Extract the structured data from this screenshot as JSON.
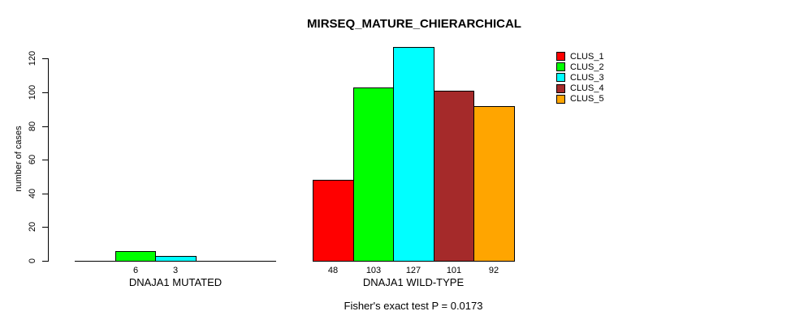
{
  "chart_data": {
    "type": "bar",
    "title": "MIRSEQ_MATURE_CHIERARCHICAL",
    "ylabel": "number of cases",
    "xlabel": "",
    "ylim": [
      0,
      130
    ],
    "y_ticks": [
      0,
      20,
      40,
      60,
      80,
      100,
      120
    ],
    "grid": false,
    "legend_position": "top-right",
    "clusters": [
      "CLUS_1",
      "CLUS_2",
      "CLUS_3",
      "CLUS_4",
      "CLUS_5"
    ],
    "colors": [
      "#FF0000",
      "#00FF00",
      "#00FFFF",
      "#A52A2A",
      "#FFA500"
    ],
    "groups": [
      {
        "label": "DNAJA1 MUTATED",
        "values": [
          0,
          6,
          3,
          0,
          0
        ],
        "bar_labels": [
          "",
          "6",
          "3",
          "",
          ""
        ]
      },
      {
        "label": "DNAJA1 WILD-TYPE",
        "values": [
          48,
          103,
          127,
          101,
          92
        ],
        "bar_labels": [
          "48",
          "103",
          "127",
          "101",
          "92"
        ]
      }
    ],
    "annotation": "Fisher's exact test P = 0.0173"
  }
}
